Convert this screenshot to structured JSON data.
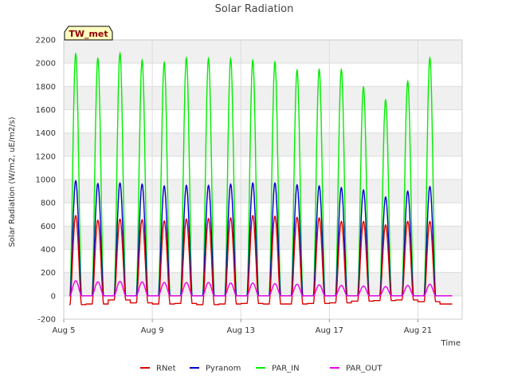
{
  "chart_data": {
    "type": "line",
    "title": "Solar Radiation",
    "xlabel": "Time",
    "ylabel": "Solar Radiation (W/m2, uE/m2/s)",
    "station_label": "TW_met",
    "x_ticks": [
      "Aug 5",
      "Aug 9",
      "Aug 13",
      "Aug 17",
      "Aug 21"
    ],
    "x_range_days": [
      5,
      23
    ],
    "ylim": [
      -200,
      2200
    ],
    "y_ticks": [
      -200,
      0,
      200,
      400,
      600,
      800,
      1000,
      1200,
      1400,
      1600,
      1800,
      2000,
      2200
    ],
    "grid": true,
    "legend_position": "bottom",
    "days": [
      "Aug 5",
      "Aug 6",
      "Aug 7",
      "Aug 8",
      "Aug 9",
      "Aug 10",
      "Aug 11",
      "Aug 12",
      "Aug 13",
      "Aug 14",
      "Aug 15",
      "Aug 16",
      "Aug 17",
      "Aug 18",
      "Aug 19",
      "Aug 20",
      "Aug 21",
      "Aug 22"
    ],
    "series": [
      {
        "name": "RNet",
        "color": "#dd0000",
        "night_values": [
          -75,
          -70,
          -35,
          -60,
          -70,
          -65,
          -75,
          -70,
          -65,
          -70,
          -70,
          -65,
          -60,
          -45,
          -40,
          -35,
          -50,
          -70
        ],
        "daily_peaks": [
          690,
          650,
          660,
          655,
          645,
          660,
          665,
          670,
          690,
          685,
          675,
          670,
          640,
          640,
          610,
          640,
          640
        ]
      },
      {
        "name": "Pyranom",
        "color": "#0000cc",
        "night_values": [
          0,
          0,
          0,
          0,
          0,
          0,
          0,
          0,
          0,
          0,
          0,
          0,
          0,
          0,
          0,
          0,
          0,
          0
        ],
        "daily_peaks": [
          990,
          965,
          970,
          960,
          945,
          950,
          950,
          960,
          970,
          970,
          955,
          945,
          930,
          910,
          850,
          900,
          940
        ]
      },
      {
        "name": "PAR_IN",
        "color": "#00ee00",
        "night_values": [
          0,
          0,
          0,
          0,
          0,
          0,
          0,
          0,
          0,
          0,
          0,
          0,
          0,
          0,
          0,
          0,
          0,
          0
        ],
        "daily_peaks": [
          2080,
          2040,
          2085,
          2025,
          2005,
          2045,
          2040,
          2040,
          2025,
          2010,
          1940,
          1945,
          1945,
          1795,
          1685,
          1845,
          2045
        ]
      },
      {
        "name": "PAR_OUT",
        "color": "#ee00ee",
        "night_values": [
          0,
          0,
          0,
          0,
          0,
          0,
          0,
          0,
          0,
          0,
          0,
          0,
          0,
          0,
          0,
          0,
          0,
          0
        ],
        "daily_peaks": [
          130,
          120,
          125,
          120,
          115,
          115,
          115,
          110,
          110,
          105,
          100,
          95,
          90,
          85,
          80,
          90,
          100
        ]
      }
    ]
  }
}
